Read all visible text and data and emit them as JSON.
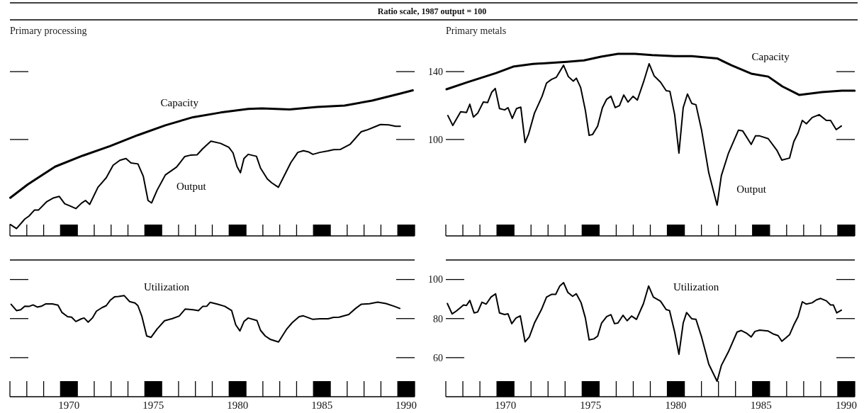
{
  "chart_data": [
    {
      "type": "line",
      "title": "Primary processing",
      "annotations": [
        "Ratio scale, 1987 output = 100"
      ],
      "log": true,
      "tick_labels": false,
      "xlim": [
        1966.5,
        1990.5
      ],
      "ylim": [
        62,
        181
      ],
      "yticks": [
        100,
        140
      ],
      "xticks": [
        1970,
        1975,
        1980,
        1985,
        1990
      ],
      "series": [
        {
          "name": "Capacity",
          "color": "#000000",
          "x": [
            1966.52,
            1967.55,
            1969.18,
            1970.82,
            1972.45,
            1974.09,
            1975.72,
            1977.36,
            1978.99,
            1980.63,
            1981.45,
            1983.08,
            1984.71,
            1986.35,
            1987.98,
            1989.62,
            1990.39
          ],
          "values": [
            74.9,
            80.0,
            87.4,
            92.3,
            96.8,
            102.2,
            107.3,
            111.7,
            114.3,
            116.4,
            116.7,
            116.1,
            117.5,
            118.3,
            121.3,
            125.5,
            127.6
          ]
        },
        {
          "name": "Output",
          "color": "#000000",
          "x": [
            1966.52,
            1966.89,
            1967.38,
            1967.63,
            1967.96,
            1968.2,
            1968.69,
            1969.1,
            1969.43,
            1969.75,
            1970.08,
            1970.41,
            1970.74,
            1970.98,
            1971.23,
            1971.72,
            1972.21,
            1972.62,
            1973.02,
            1973.38,
            1973.68,
            1974.09,
            1974.41,
            1974.69,
            1974.9,
            1975.23,
            1975.72,
            1976.38,
            1976.87,
            1977.19,
            1977.6,
            1977.93,
            1978.42,
            1978.99,
            1979.48,
            1979.73,
            1979.97,
            1980.17,
            1980.38,
            1980.63,
            1981.12,
            1981.36,
            1981.77,
            1982.02,
            1982.42,
            1983.16,
            1983.57,
            1983.9,
            1984.22,
            1984.47,
            1984.88,
            1985.37,
            1985.69,
            1986.1,
            1986.68,
            1987.33,
            1987.66,
            1988.06,
            1988.47,
            1988.96,
            1989.37,
            1989.65
          ],
          "values": [
            65.6,
            64.3,
            67.4,
            68.4,
            70.5,
            70.5,
            73.5,
            74.9,
            75.4,
            72.7,
            71.9,
            71.0,
            72.9,
            73.9,
            72.5,
            78.9,
            82.7,
            88.0,
            90.2,
            91.0,
            89.0,
            88.6,
            83.3,
            73.9,
            73.0,
            77.8,
            83.9,
            87.2,
            91.9,
            92.5,
            92.7,
            95.5,
            99.2,
            98.1,
            96.2,
            93.6,
            87.4,
            84.8,
            91.0,
            92.9,
            92.0,
            86.8,
            82.2,
            80.7,
            78.9,
            89.2,
            93.8,
            94.6,
            94.0,
            92.9,
            93.8,
            94.5,
            95.1,
            95.2,
            97.7,
            103.9,
            104.8,
            106.2,
            107.7,
            107.5,
            106.8,
            106.8
          ]
        }
      ]
    },
    {
      "type": "line",
      "title": "Primary metals",
      "log": true,
      "tick_labels": "y",
      "xlim": [
        1966.5,
        1990.5
      ],
      "ylim": [
        62,
        181
      ],
      "yticks": [
        100,
        140
      ],
      "xticks": [
        1970,
        1975,
        1980,
        1985,
        1990
      ],
      "series": [
        {
          "name": "Capacity",
          "color": "#000000",
          "x": [
            1966.54,
            1967.79,
            1969.45,
            1970.45,
            1971.61,
            1973.61,
            1974.61,
            1975.61,
            1976.6,
            1977.6,
            1978.6,
            1979.93,
            1980.93,
            1982.42,
            1983.26,
            1984.42,
            1985.42,
            1986.25,
            1987.25,
            1988.58,
            1989.74,
            1990.49
          ],
          "values": [
            128.3,
            132.9,
            139.0,
            143.5,
            145.4,
            147.0,
            148.0,
            150.8,
            152.9,
            152.9,
            152.0,
            151.2,
            151.2,
            149.5,
            144.5,
            138.6,
            136.6,
            130.1,
            124.7,
            126.5,
            127.4,
            127.4
          ]
        },
        {
          "name": "Output",
          "color": "#000000",
          "x": [
            1966.62,
            1966.91,
            1967.37,
            1967.71,
            1967.91,
            1968.12,
            1968.37,
            1968.7,
            1968.95,
            1969.2,
            1969.4,
            1969.65,
            1969.95,
            1970.15,
            1970.4,
            1970.65,
            1970.9,
            1971.15,
            1971.36,
            1971.7,
            1972.15,
            1972.41,
            1972.7,
            1972.98,
            1973.41,
            1973.69,
            1973.98,
            1974.16,
            1974.41,
            1974.69,
            1974.91,
            1975.11,
            1975.41,
            1975.69,
            1975.94,
            1976.19,
            1976.44,
            1976.69,
            1976.94,
            1977.19,
            1977.49,
            1977.74,
            1978.1,
            1978.43,
            1978.73,
            1979.1,
            1979.43,
            1979.65,
            1979.93,
            1980.18,
            1980.43,
            1980.68,
            1980.93,
            1981.18,
            1981.51,
            1981.93,
            1982.42,
            1982.67,
            1983.09,
            1983.67,
            1983.92,
            1984.42,
            1984.67,
            1984.92,
            1985.42,
            1985.92,
            1986.22,
            1986.67,
            1986.92,
            1987.17,
            1987.42,
            1987.66,
            1988.0,
            1988.41,
            1988.83,
            1989.08,
            1989.41,
            1989.71
          ],
          "values": [
            112.6,
            107.2,
            114.7,
            114.3,
            119.1,
            111.8,
            113.9,
            120.4,
            120.1,
            126.5,
            128.8,
            116.6,
            115.8,
            117.1,
            111.0,
            116.6,
            117.4,
            98.5,
            102.8,
            113.9,
            123.9,
            132.3,
            134.7,
            136.1,
            144.5,
            136.6,
            133.6,
            135.5,
            129.5,
            115.5,
            102.1,
            102.5,
            106.9,
            117.1,
            122.1,
            123.9,
            117.1,
            118.3,
            124.7,
            120.4,
            123.9,
            121.6,
            132.9,
            145.6,
            137.0,
            132.9,
            127.4,
            127.0,
            113.1,
            93.5,
            117.1,
            125.3,
            119.6,
            118.8,
            104.7,
            84.8,
            72.2,
            83.6,
            93.5,
            104.7,
            104.4,
            97.6,
            101.8,
            101.8,
            100.4,
            94.9,
            90.3,
            91.2,
            98.9,
            103.2,
            109.9,
            108.1,
            111.5,
            113.1,
            109.9,
            109.9,
            105.0,
            106.9
          ]
        }
      ]
    },
    {
      "type": "line",
      "tick_labels": "x",
      "xlim": [
        1966.5,
        1990.5
      ],
      "ylim": [
        40,
        110
      ],
      "yticks": [
        60,
        80,
        100
      ],
      "xticks": [
        1970,
        1975,
        1980,
        1985,
        1990
      ],
      "series": [
        {
          "name": "Utilization",
          "color": "#000000",
          "x": [
            1966.57,
            1966.89,
            1967.14,
            1967.38,
            1967.63,
            1967.87,
            1968.12,
            1968.36,
            1968.61,
            1969.02,
            1969.35,
            1969.59,
            1969.92,
            1970.16,
            1970.41,
            1970.74,
            1970.9,
            1971.14,
            1971.39,
            1971.63,
            1971.96,
            1972.21,
            1972.45,
            1972.7,
            1972.94,
            1973.27,
            1973.6,
            1973.92,
            1974.09,
            1974.33,
            1974.61,
            1974.87,
            1975.23,
            1975.67,
            1976.13,
            1976.54,
            1976.9,
            1977.36,
            1977.68,
            1977.93,
            1978.17,
            1978.37,
            1978.83,
            1979.24,
            1979.65,
            1979.89,
            1980.14,
            1980.38,
            1980.63,
            1981.15,
            1981.36,
            1981.64,
            1981.93,
            1982.43,
            1982.92,
            1983.24,
            1983.65,
            1983.9,
            1984.47,
            1984.88,
            1985.37,
            1985.69,
            1986.02,
            1986.59,
            1987.0,
            1987.33,
            1987.82,
            1988.31,
            1988.8,
            1989.29,
            1989.62
          ],
          "values": [
            87.3,
            84.1,
            84.5,
            86.3,
            86.2,
            87.0,
            85.9,
            86.3,
            87.5,
            87.5,
            86.9,
            83.1,
            81.0,
            80.7,
            78.5,
            79.9,
            80.3,
            78.2,
            80.3,
            83.8,
            85.6,
            86.6,
            89.4,
            91.1,
            91.3,
            91.8,
            88.7,
            88.0,
            86.6,
            81.0,
            71.1,
            70.4,
            74.7,
            78.9,
            80.0,
            81.3,
            84.9,
            84.5,
            84.1,
            86.2,
            86.3,
            88.3,
            87.3,
            86.3,
            84.1,
            76.8,
            73.7,
            78.5,
            80.3,
            79.0,
            74.0,
            71.1,
            69.4,
            68.0,
            74.7,
            77.9,
            81.0,
            81.4,
            79.6,
            79.9,
            79.9,
            80.6,
            80.7,
            82.1,
            85.2,
            87.3,
            87.6,
            88.4,
            87.7,
            86.3,
            85.2
          ]
        }
      ]
    },
    {
      "type": "line",
      "xlim": [
        1966.5,
        1990.5
      ],
      "ylim": [
        40,
        110
      ],
      "yticks": [
        60,
        80,
        100
      ],
      "xticks": [
        1970,
        1975,
        1980,
        1985,
        1990
      ],
      "series": [
        {
          "name": "Utilization",
          "color": "#000000",
          "x": [
            1966.59,
            1966.87,
            1967.12,
            1967.37,
            1967.54,
            1967.71,
            1967.91,
            1968.16,
            1968.37,
            1968.62,
            1968.87,
            1969.15,
            1969.42,
            1969.65,
            1969.95,
            1970.15,
            1970.37,
            1970.62,
            1970.87,
            1971.15,
            1971.4,
            1971.7,
            1972.11,
            1972.41,
            1972.7,
            1972.95,
            1973.19,
            1973.41,
            1973.66,
            1973.94,
            1974.16,
            1974.44,
            1974.69,
            1974.91,
            1975.19,
            1975.41,
            1975.64,
            1975.94,
            1976.19,
            1976.4,
            1976.6,
            1976.9,
            1977.14,
            1977.4,
            1977.69,
            1978.1,
            1978.4,
            1978.68,
            1979.1,
            1979.43,
            1979.63,
            1979.93,
            1980.18,
            1980.43,
            1980.63,
            1980.93,
            1981.18,
            1981.51,
            1981.93,
            1982.42,
            1982.67,
            1983.09,
            1983.59,
            1983.84,
            1984.17,
            1984.42,
            1984.64,
            1984.92,
            1985.42,
            1985.75,
            1986.0,
            1986.22,
            1986.67,
            1986.92,
            1987.17,
            1987.42,
            1987.66,
            1988.0,
            1988.25,
            1988.5,
            1988.83,
            1989.08,
            1989.24,
            1989.44,
            1989.71
          ],
          "values": [
            87.7,
            82.4,
            83.9,
            85.7,
            87.0,
            86.7,
            89.3,
            82.9,
            83.4,
            88.4,
            87.4,
            91.0,
            92.7,
            82.9,
            82.1,
            82.4,
            77.4,
            80.3,
            81.4,
            68.1,
            70.6,
            77.7,
            84.6,
            91.0,
            92.4,
            92.4,
            96.7,
            98.4,
            93.4,
            91.4,
            92.7,
            88.1,
            80.3,
            69.1,
            69.6,
            71.0,
            77.7,
            81.0,
            82.0,
            77.4,
            77.7,
            81.7,
            78.9,
            81.3,
            79.6,
            87.7,
            96.7,
            91.0,
            88.9,
            84.6,
            84.1,
            73.1,
            61.7,
            77.7,
            83.1,
            79.9,
            79.6,
            70.6,
            56.7,
            47.9,
            56.0,
            63.1,
            73.1,
            73.9,
            72.4,
            70.6,
            73.4,
            74.1,
            73.6,
            72.0,
            71.3,
            68.4,
            71.7,
            76.7,
            81.0,
            88.6,
            87.4,
            88.1,
            89.6,
            90.3,
            89.1,
            87.0,
            87.0,
            82.9,
            84.3
          ]
        }
      ]
    }
  ]
}
